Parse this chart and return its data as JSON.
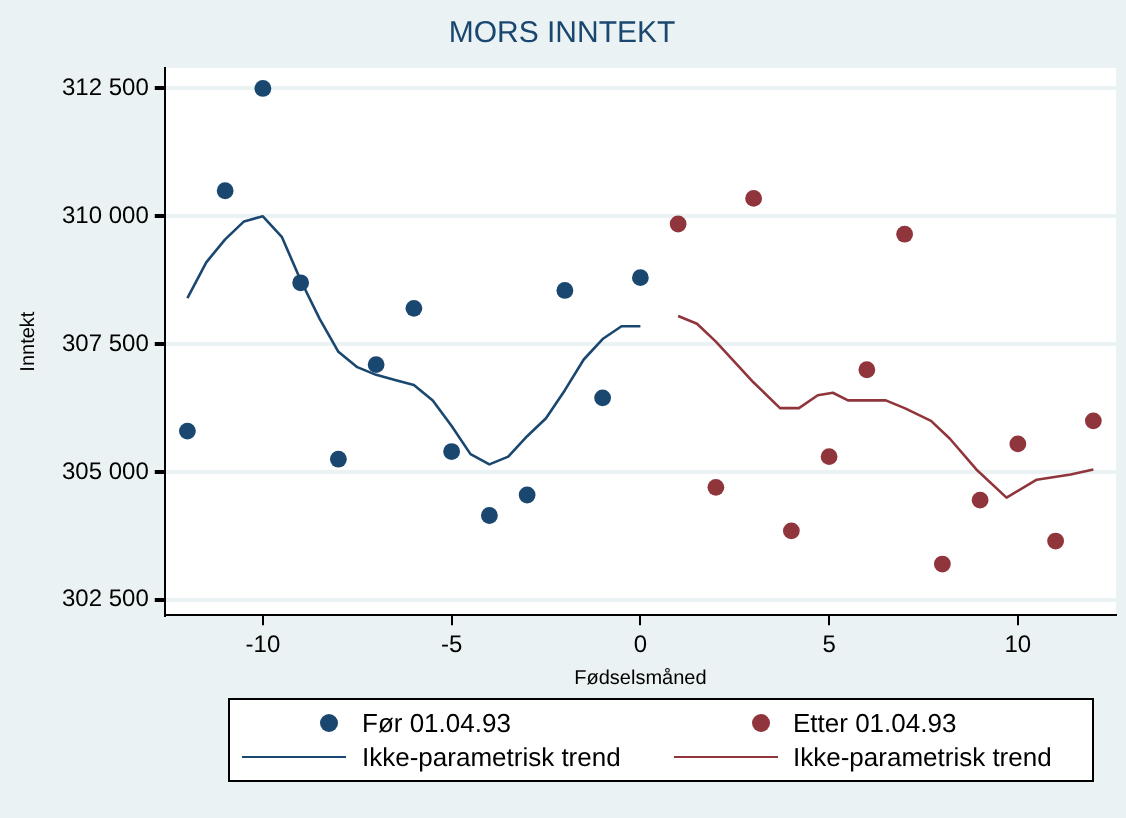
{
  "chart_data": {
    "type": "scatter",
    "title": "MORS INNTEKT",
    "xlabel": "Fødselsmåned",
    "ylabel": "Inntekt",
    "xlim": [
      -12.6,
      12.6
    ],
    "xticks": [
      -10,
      -5,
      0,
      5,
      10
    ],
    "ylim": [
      302200,
      312900
    ],
    "yticks": [
      {
        "value": 302500,
        "label": "302 500"
      },
      {
        "value": 305000,
        "label": "305 000"
      },
      {
        "value": 307500,
        "label": "307 500"
      },
      {
        "value": 310000,
        "label": "310 000"
      },
      {
        "value": 312500,
        "label": "312 500"
      }
    ],
    "grid": "y",
    "legend": "bottom",
    "series": [
      {
        "name": "Før 01.04.93",
        "marker": "circle",
        "color": "#1a476f",
        "x": [
          -12,
          -11,
          -10,
          -9,
          -8,
          -7,
          -6,
          -5,
          -4,
          -3,
          -2,
          -1,
          0
        ],
        "values": [
          305800,
          310500,
          312500,
          308700,
          305250,
          307100,
          308200,
          305400,
          304150,
          304550,
          308550,
          306450,
          308800
        ]
      },
      {
        "name": "Etter 01.04.93",
        "marker": "circle",
        "color": "#90353b",
        "x": [
          1,
          2,
          3,
          4,
          5,
          6,
          7,
          8,
          9,
          10,
          11,
          12
        ],
        "values": [
          309850,
          304700,
          310350,
          303850,
          305300,
          307000,
          309650,
          303200,
          304450,
          305550,
          303650,
          306000
        ]
      },
      {
        "name": "Ikke-parametrisk trend",
        "type": "line",
        "marker": "none",
        "line_style": "solid",
        "color": "#1a476f",
        "x": [
          -12,
          -11.5,
          -11,
          -10.5,
          -10,
          -9.5,
          -9,
          -8.5,
          -8,
          -7.5,
          -7,
          -6.5,
          -6,
          -5.5,
          -5,
          -4.5,
          -4,
          -3.5,
          -3,
          -2.5,
          -2,
          -1.5,
          -1,
          -0.5,
          0
        ],
        "values": [
          308400,
          309100,
          309550,
          309900,
          310000,
          309600,
          308750,
          308000,
          307350,
          307050,
          306900,
          306800,
          306700,
          306400,
          305900,
          305350,
          305150,
          305300,
          305700,
          306050,
          306600,
          307200,
          307600,
          307850,
          307850
        ]
      },
      {
        "name": "Ikke-parametrisk trend",
        "type": "line",
        "marker": "none",
        "line_style": "solid",
        "color": "#90353b",
        "x": [
          1,
          1.5,
          2,
          2.5,
          3,
          3.7,
          4.2,
          4.7,
          5.1,
          5.5,
          6.1,
          6.5,
          7,
          7.7,
          8.2,
          8.9,
          9.7,
          10.5,
          11.4,
          12
        ],
        "values": [
          308050,
          307900,
          307550,
          307150,
          306750,
          306250,
          306250,
          306500,
          306550,
          306400,
          306400,
          306400,
          306250,
          306000,
          305650,
          305050,
          304500,
          304850,
          304950,
          305050
        ]
      }
    ]
  }
}
